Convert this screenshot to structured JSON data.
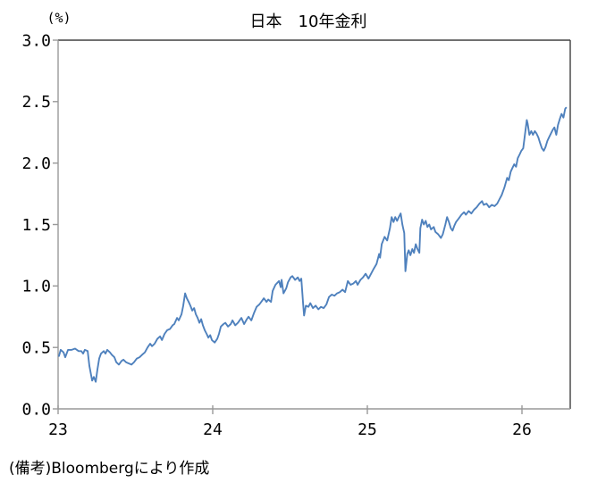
{
  "chart": {
    "title": "日本　10年金利",
    "y_axis_unit_label": "(%)",
    "note": "(備考)Bloombergにより作成",
    "line_color": "#4F81BD",
    "axis_color": "#999999",
    "border_color": "#404040",
    "y_tick_labels": [
      "3.0",
      "2.5",
      "2.0",
      "1.5",
      "1.0",
      "0.5",
      "0.0"
    ],
    "x_tick_labels": [
      "23",
      "24",
      "25",
      "26"
    ]
  },
  "chart_data": {
    "type": "line",
    "title": "日本　10年金利",
    "xlabel": "",
    "ylabel": "(%)",
    "xlim": [
      23,
      26.31
    ],
    "ylim": [
      0.0,
      3.0
    ],
    "x_ticks": [
      23,
      24,
      25,
      26
    ],
    "y_ticks": [
      0.0,
      0.5,
      1.0,
      1.5,
      2.0,
      2.5,
      3.0
    ],
    "grid": false,
    "legend_position": "none",
    "source_note": "(備考)Bloombergにより作成",
    "series": [
      {
        "name": "日本 10年金利",
        "points": [
          [
            23.006,
            0.43
          ],
          [
            23.017,
            0.48
          ],
          [
            23.035,
            0.46
          ],
          [
            23.046,
            0.42
          ],
          [
            23.064,
            0.48
          ],
          [
            23.087,
            0.48
          ],
          [
            23.11,
            0.49
          ],
          [
            23.133,
            0.47
          ],
          [
            23.15,
            0.47
          ],
          [
            23.162,
            0.45
          ],
          [
            23.173,
            0.48
          ],
          [
            23.191,
            0.47
          ],
          [
            23.202,
            0.35
          ],
          [
            23.22,
            0.23
          ],
          [
            23.231,
            0.26
          ],
          [
            23.243,
            0.22
          ],
          [
            23.254,
            0.32
          ],
          [
            23.266,
            0.41
          ],
          [
            23.277,
            0.45
          ],
          [
            23.295,
            0.47
          ],
          [
            23.306,
            0.45
          ],
          [
            23.318,
            0.48
          ],
          [
            23.335,
            0.46
          ],
          [
            23.347,
            0.44
          ],
          [
            23.364,
            0.42
          ],
          [
            23.376,
            0.38
          ],
          [
            23.393,
            0.36
          ],
          [
            23.41,
            0.39
          ],
          [
            23.422,
            0.4
          ],
          [
            23.439,
            0.38
          ],
          [
            23.457,
            0.37
          ],
          [
            23.474,
            0.36
          ],
          [
            23.491,
            0.38
          ],
          [
            23.509,
            0.41
          ],
          [
            23.526,
            0.42
          ],
          [
            23.543,
            0.44
          ],
          [
            23.561,
            0.46
          ],
          [
            23.578,
            0.5
          ],
          [
            23.595,
            0.53
          ],
          [
            23.607,
            0.51
          ],
          [
            23.624,
            0.53
          ],
          [
            23.642,
            0.57
          ],
          [
            23.659,
            0.59
          ],
          [
            23.671,
            0.56
          ],
          [
            23.688,
            0.61
          ],
          [
            23.705,
            0.64
          ],
          [
            23.723,
            0.65
          ],
          [
            23.74,
            0.68
          ],
          [
            23.751,
            0.69
          ],
          [
            23.769,
            0.74
          ],
          [
            23.78,
            0.72
          ],
          [
            23.798,
            0.77
          ],
          [
            23.809,
            0.84
          ],
          [
            23.821,
            0.94
          ],
          [
            23.832,
            0.9
          ],
          [
            23.844,
            0.87
          ],
          [
            23.855,
            0.84
          ],
          [
            23.867,
            0.8
          ],
          [
            23.879,
            0.82
          ],
          [
            23.89,
            0.77
          ],
          [
            23.902,
            0.74
          ],
          [
            23.913,
            0.7
          ],
          [
            23.925,
            0.73
          ],
          [
            23.936,
            0.68
          ],
          [
            23.948,
            0.64
          ],
          [
            23.96,
            0.61
          ],
          [
            23.971,
            0.58
          ],
          [
            23.983,
            0.6
          ],
          [
            23.994,
            0.56
          ],
          [
            24.012,
            0.54
          ],
          [
            24.029,
            0.57
          ],
          [
            24.04,
            0.61
          ],
          [
            24.052,
            0.67
          ],
          [
            24.069,
            0.69
          ],
          [
            24.081,
            0.7
          ],
          [
            24.098,
            0.67
          ],
          [
            24.116,
            0.69
          ],
          [
            24.127,
            0.72
          ],
          [
            24.145,
            0.68
          ],
          [
            24.162,
            0.7
          ],
          [
            24.185,
            0.74
          ],
          [
            24.202,
            0.69
          ],
          [
            24.22,
            0.73
          ],
          [
            24.231,
            0.75
          ],
          [
            24.249,
            0.72
          ],
          [
            24.266,
            0.78
          ],
          [
            24.283,
            0.83
          ],
          [
            24.301,
            0.85
          ],
          [
            24.318,
            0.88
          ],
          [
            24.33,
            0.9
          ],
          [
            24.347,
            0.87
          ],
          [
            24.358,
            0.89
          ],
          [
            24.376,
            0.87
          ],
          [
            24.387,
            0.96
          ],
          [
            24.405,
            1.01
          ],
          [
            24.428,
            1.04
          ],
          [
            24.439,
            0.99
          ],
          [
            24.445,
            1.05
          ],
          [
            24.457,
            0.94
          ],
          [
            24.474,
            0.98
          ],
          [
            24.486,
            1.03
          ],
          [
            24.503,
            1.07
          ],
          [
            24.514,
            1.08
          ],
          [
            24.532,
            1.05
          ],
          [
            24.549,
            1.07
          ],
          [
            24.561,
            1.04
          ],
          [
            24.572,
            1.06
          ],
          [
            24.584,
            0.85
          ],
          [
            24.59,
            0.76
          ],
          [
            24.601,
            0.84
          ],
          [
            24.618,
            0.83
          ],
          [
            24.63,
            0.86
          ],
          [
            24.647,
            0.82
          ],
          [
            24.665,
            0.84
          ],
          [
            24.682,
            0.81
          ],
          [
            24.699,
            0.83
          ],
          [
            24.717,
            0.82
          ],
          [
            24.734,
            0.85
          ],
          [
            24.751,
            0.91
          ],
          [
            24.769,
            0.93
          ],
          [
            24.786,
            0.92
          ],
          [
            24.803,
            0.94
          ],
          [
            24.821,
            0.95
          ],
          [
            24.838,
            0.97
          ],
          [
            24.855,
            0.95
          ],
          [
            24.873,
            1.04
          ],
          [
            24.89,
            1.01
          ],
          [
            24.908,
            1.02
          ],
          [
            24.925,
            1.04
          ],
          [
            24.936,
            1.01
          ],
          [
            24.954,
            1.05
          ],
          [
            24.971,
            1.07
          ],
          [
            24.988,
            1.1
          ],
          [
            25.006,
            1.06
          ],
          [
            25.023,
            1.1
          ],
          [
            25.04,
            1.14
          ],
          [
            25.058,
            1.18
          ],
          [
            25.075,
            1.26
          ],
          [
            25.081,
            1.23
          ],
          [
            25.092,
            1.34
          ],
          [
            25.11,
            1.4
          ],
          [
            25.127,
            1.37
          ],
          [
            25.145,
            1.47
          ],
          [
            25.156,
            1.56
          ],
          [
            25.168,
            1.52
          ],
          [
            25.179,
            1.56
          ],
          [
            25.191,
            1.53
          ],
          [
            25.202,
            1.56
          ],
          [
            25.214,
            1.59
          ],
          [
            25.225,
            1.5
          ],
          [
            25.237,
            1.43
          ],
          [
            25.245,
            1.12
          ],
          [
            25.257,
            1.26
          ],
          [
            25.266,
            1.29
          ],
          [
            25.277,
            1.25
          ],
          [
            25.289,
            1.3
          ],
          [
            25.3,
            1.27
          ],
          [
            25.312,
            1.34
          ],
          [
            25.323,
            1.3
          ],
          [
            25.335,
            1.27
          ],
          [
            25.341,
            1.47
          ],
          [
            25.353,
            1.54
          ],
          [
            25.364,
            1.5
          ],
          [
            25.376,
            1.53
          ],
          [
            25.387,
            1.48
          ],
          [
            25.399,
            1.5
          ],
          [
            25.41,
            1.46
          ],
          [
            25.428,
            1.48
          ],
          [
            25.439,
            1.44
          ],
          [
            25.457,
            1.42
          ],
          [
            25.474,
            1.39
          ],
          [
            25.486,
            1.42
          ],
          [
            25.503,
            1.5
          ],
          [
            25.514,
            1.56
          ],
          [
            25.526,
            1.52
          ],
          [
            25.538,
            1.47
          ],
          [
            25.549,
            1.45
          ],
          [
            25.561,
            1.49
          ],
          [
            25.572,
            1.52
          ],
          [
            25.59,
            1.55
          ],
          [
            25.607,
            1.58
          ],
          [
            25.624,
            1.6
          ],
          [
            25.636,
            1.58
          ],
          [
            25.653,
            1.61
          ],
          [
            25.671,
            1.59
          ],
          [
            25.688,
            1.62
          ],
          [
            25.705,
            1.64
          ],
          [
            25.723,
            1.67
          ],
          [
            25.74,
            1.69
          ],
          [
            25.751,
            1.66
          ],
          [
            25.769,
            1.67
          ],
          [
            25.786,
            1.64
          ],
          [
            25.803,
            1.66
          ],
          [
            25.821,
            1.65
          ],
          [
            25.838,
            1.67
          ],
          [
            25.85,
            1.7
          ],
          [
            25.867,
            1.74
          ],
          [
            25.884,
            1.8
          ],
          [
            25.902,
            1.88
          ],
          [
            25.913,
            1.86
          ],
          [
            25.925,
            1.93
          ],
          [
            25.936,
            1.96
          ],
          [
            25.948,
            1.99
          ],
          [
            25.96,
            1.97
          ],
          [
            25.971,
            2.04
          ],
          [
            25.983,
            2.07
          ],
          [
            25.994,
            2.1
          ],
          [
            26.006,
            2.12
          ],
          [
            26.017,
            2.23
          ],
          [
            26.029,
            2.35
          ],
          [
            26.035,
            2.32
          ],
          [
            26.046,
            2.23
          ],
          [
            26.058,
            2.26
          ],
          [
            26.069,
            2.23
          ],
          [
            26.081,
            2.26
          ],
          [
            26.092,
            2.24
          ],
          [
            26.104,
            2.21
          ],
          [
            26.116,
            2.16
          ],
          [
            26.127,
            2.12
          ],
          [
            26.139,
            2.1
          ],
          [
            26.15,
            2.13
          ],
          [
            26.162,
            2.18
          ],
          [
            26.173,
            2.21
          ],
          [
            26.185,
            2.24
          ],
          [
            26.197,
            2.27
          ],
          [
            26.208,
            2.29
          ],
          [
            26.22,
            2.23
          ],
          [
            26.231,
            2.31
          ],
          [
            26.243,
            2.36
          ],
          [
            26.254,
            2.4
          ],
          [
            26.266,
            2.37
          ],
          [
            26.277,
            2.44
          ],
          [
            26.283,
            2.45
          ]
        ]
      }
    ]
  }
}
